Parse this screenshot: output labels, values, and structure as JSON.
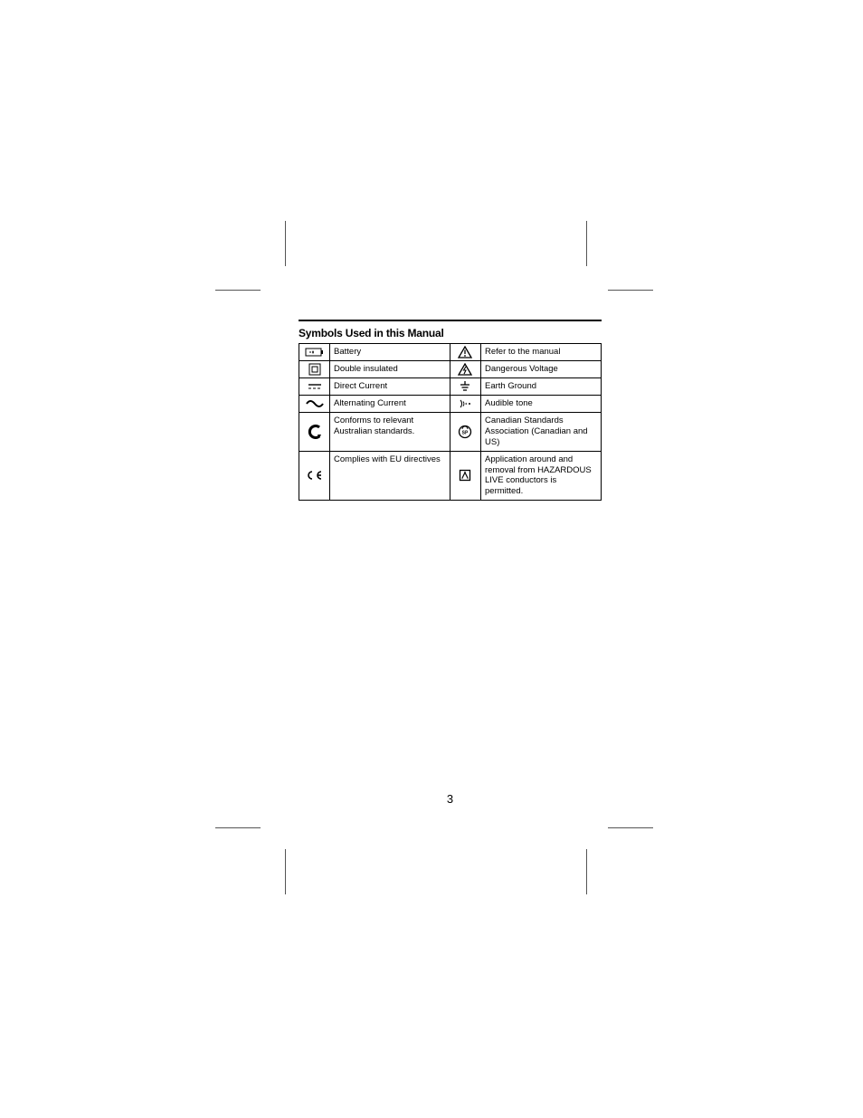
{
  "heading": "Symbols Used in this Manual",
  "page_number": "3",
  "rows": [
    {
      "l_icon": "battery",
      "l_text": "Battery",
      "r_icon": "warn-triangle",
      "r_text": "Refer to the manual"
    },
    {
      "l_icon": "double-insulated",
      "l_text": "Double insulated",
      "r_icon": "bolt-triangle",
      "r_text": "Dangerous Voltage"
    },
    {
      "l_icon": "dc",
      "l_text": "Direct Current",
      "r_icon": "earth-ground",
      "r_text": "Earth Ground"
    },
    {
      "l_icon": "ac",
      "l_text": "Alternating Current",
      "r_icon": "audible",
      "r_text": "Audible tone"
    },
    {
      "l_icon": "c-tick",
      "l_text": "Conforms to relevant Australian standards.",
      "r_icon": "csa",
      "r_text": "Canadian Standards Association (Canadian and US)"
    },
    {
      "l_icon": "ce",
      "l_text": "Complies with EU directives",
      "r_icon": "live-box",
      "r_text": "Application around and removal from HAZARDOUS LIVE conductors is permitted."
    }
  ]
}
